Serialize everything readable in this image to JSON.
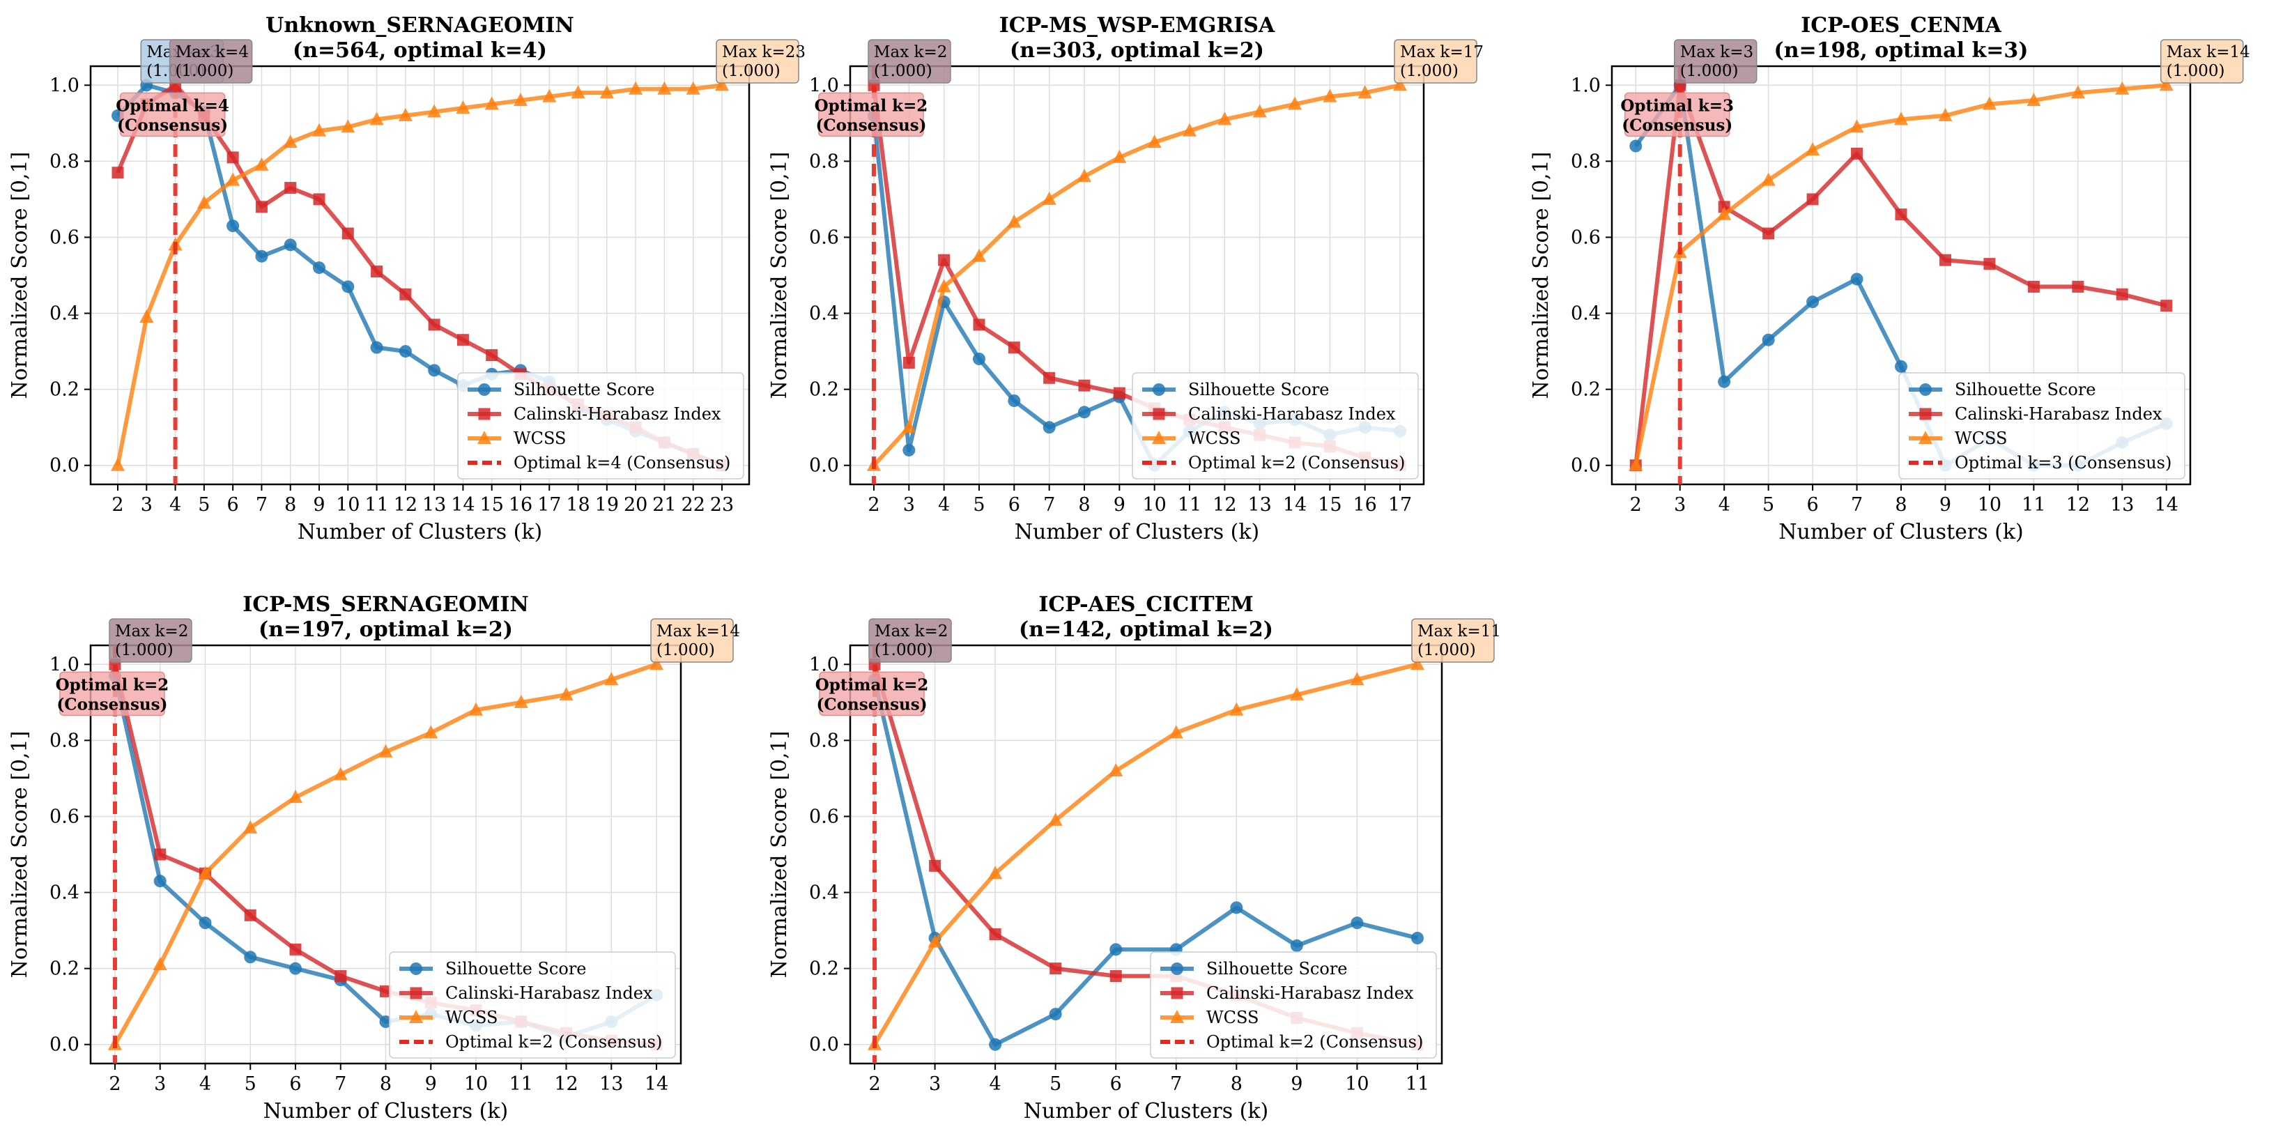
{
  "series_names": [
    "Silhouette Score",
    "Calinski-Harabasz Index",
    "WCSS"
  ],
  "colors": {
    "silhouette": "#1f77b4",
    "calinski": "#d62728",
    "wcss": "#ff7f0e",
    "optimal": "#e8281f"
  },
  "chart_data": [
    {
      "type": "line",
      "title": "Unknown_SERNAGEOMIN",
      "subtitle": "(n=564, optimal k=4)",
      "xlabel": "Number of Clusters (k)",
      "ylabel": "Normalized Score [0,1]",
      "ylim": [
        -0.05,
        1.05
      ],
      "yticks": [
        "0.0",
        "0.2",
        "0.4",
        "0.6",
        "0.8",
        "1.0"
      ],
      "grid": true,
      "legend_position": "lower-right",
      "x": [
        2,
        3,
        4,
        5,
        6,
        7,
        8,
        9,
        10,
        11,
        12,
        13,
        14,
        15,
        16,
        17,
        18,
        19,
        20,
        21,
        22,
        23
      ],
      "series": [
        {
          "name": "Silhouette Score",
          "values": [
            0.92,
            1.0,
            0.98,
            0.93,
            0.63,
            0.55,
            0.58,
            0.52,
            0.47,
            0.31,
            0.3,
            0.25,
            0.21,
            0.24,
            0.25,
            0.22,
            0.15,
            0.12,
            0.09,
            0.06,
            0.03,
            0.0
          ]
        },
        {
          "name": "Calinski-Harabasz Index",
          "values": [
            0.77,
            0.95,
            1.0,
            0.92,
            0.81,
            0.68,
            0.73,
            0.7,
            0.61,
            0.51,
            0.45,
            0.37,
            0.33,
            0.29,
            0.24,
            0.2,
            0.16,
            0.13,
            0.1,
            0.06,
            0.03,
            0.0
          ]
        },
        {
          "name": "WCSS",
          "values": [
            0.0,
            0.39,
            0.58,
            0.69,
            0.75,
            0.79,
            0.85,
            0.88,
            0.89,
            0.91,
            0.92,
            0.93,
            0.94,
            0.95,
            0.96,
            0.97,
            0.98,
            0.98,
            0.99,
            0.99,
            0.99,
            1.0
          ]
        }
      ],
      "optimal_k": 4,
      "optimal_label": "Optimal k=4 (Consensus)",
      "optimal_box": [
        "Optimal k=4",
        "(Consensus)"
      ],
      "max_boxes": [
        {
          "x": 3,
          "series": "Silhouette Score",
          "lines": [
            "Max k=3",
            "(1.000)"
          ]
        },
        {
          "x": 4,
          "series": "Calinski-Harabasz Index",
          "lines": [
            "Max k=4",
            "(1.000)"
          ]
        },
        {
          "x": 23,
          "series": "WCSS",
          "lines": [
            "Max k=23",
            "(1.000)"
          ]
        }
      ]
    },
    {
      "type": "line",
      "title": "ICP-MS_WSP-EMGRISA",
      "subtitle": "(n=303, optimal k=2)",
      "xlabel": "Number of Clusters (k)",
      "ylabel": "Normalized Score [0,1]",
      "ylim": [
        -0.05,
        1.05
      ],
      "yticks": [
        "0.0",
        "0.2",
        "0.4",
        "0.6",
        "0.8",
        "1.0"
      ],
      "grid": true,
      "legend_position": "lower-right",
      "x": [
        2,
        3,
        4,
        5,
        6,
        7,
        8,
        9,
        10,
        11,
        12,
        13,
        14,
        15,
        16,
        17
      ],
      "series": [
        {
          "name": "Silhouette Score",
          "values": [
            0.92,
            0.04,
            0.43,
            0.28,
            0.17,
            0.1,
            0.14,
            0.18,
            0.0,
            0.09,
            0.14,
            0.11,
            0.12,
            0.08,
            0.1,
            0.09
          ]
        },
        {
          "name": "Calinski-Harabasz Index",
          "values": [
            1.0,
            0.27,
            0.54,
            0.37,
            0.31,
            0.23,
            0.21,
            0.19,
            0.15,
            0.12,
            0.1,
            0.08,
            0.06,
            0.05,
            0.02,
            0.0
          ]
        },
        {
          "name": "WCSS",
          "values": [
            0.0,
            0.1,
            0.47,
            0.55,
            0.64,
            0.7,
            0.76,
            0.81,
            0.85,
            0.88,
            0.91,
            0.93,
            0.95,
            0.97,
            0.98,
            1.0
          ]
        }
      ],
      "optimal_k": 2,
      "optimal_label": "Optimal k=2 (Consensus)",
      "optimal_box": [
        "Optimal k=2",
        "(Consensus)"
      ],
      "max_boxes": [
        {
          "x": 2,
          "series": "Calinski-Harabasz Index",
          "lines": [
            "Max k=2",
            "(1.000)"
          ]
        },
        {
          "x": 17,
          "series": "WCSS",
          "lines": [
            "Max k=17",
            "(1.000)"
          ]
        }
      ]
    },
    {
      "type": "line",
      "title": "ICP-OES_CENMA",
      "subtitle": "(n=198, optimal k=3)",
      "xlabel": "Number of Clusters (k)",
      "ylabel": "Normalized Score [0,1]",
      "ylim": [
        -0.05,
        1.05
      ],
      "yticks": [
        "0.0",
        "0.2",
        "0.4",
        "0.6",
        "0.8",
        "1.0"
      ],
      "grid": true,
      "legend_position": "lower-right",
      "x": [
        2,
        3,
        4,
        5,
        6,
        7,
        8,
        9,
        10,
        11,
        12,
        13,
        14
      ],
      "series": [
        {
          "name": "Silhouette Score",
          "values": [
            0.84,
            1.0,
            0.22,
            0.33,
            0.43,
            0.49,
            0.26,
            0.0,
            0.07,
            0.0,
            0.0,
            0.06,
            0.11
          ]
        },
        {
          "name": "Calinski-Harabasz Index",
          "values": [
            0.0,
            1.0,
            0.68,
            0.61,
            0.7,
            0.82,
            0.66,
            0.54,
            0.53,
            0.47,
            0.47,
            0.45,
            0.42
          ]
        },
        {
          "name": "WCSS",
          "values": [
            0.0,
            0.56,
            0.66,
            0.75,
            0.83,
            0.89,
            0.91,
            0.92,
            0.95,
            0.96,
            0.98,
            0.99,
            1.0
          ]
        }
      ],
      "optimal_k": 3,
      "optimal_label": "Optimal k=3 (Consensus)",
      "optimal_box": [
        "Optimal k=3",
        "(Consensus)"
      ],
      "max_boxes": [
        {
          "x": 3,
          "series": "Calinski-Harabasz Index",
          "lines": [
            "Max k=3",
            "(1.000)"
          ]
        },
        {
          "x": 14,
          "series": "WCSS",
          "lines": [
            "Max k=14",
            "(1.000)"
          ]
        }
      ]
    },
    {
      "type": "line",
      "title": "ICP-MS_SERNAGEOMIN",
      "subtitle": "(n=197, optimal k=2)",
      "xlabel": "Number of Clusters (k)",
      "ylabel": "Normalized Score [0,1]",
      "ylim": [
        -0.05,
        1.05
      ],
      "yticks": [
        "0.0",
        "0.2",
        "0.4",
        "0.6",
        "0.8",
        "1.0"
      ],
      "grid": true,
      "legend_position": "lower-right",
      "x": [
        2,
        3,
        4,
        5,
        6,
        7,
        8,
        9,
        10,
        11,
        12,
        13,
        14
      ],
      "series": [
        {
          "name": "Silhouette Score",
          "values": [
            0.97,
            0.43,
            0.32,
            0.23,
            0.2,
            0.17,
            0.06,
            0.08,
            0.05,
            0.06,
            0.02,
            0.06,
            0.13
          ]
        },
        {
          "name": "Calinski-Harabasz Index",
          "values": [
            1.0,
            0.5,
            0.45,
            0.34,
            0.25,
            0.18,
            0.14,
            0.11,
            0.09,
            0.06,
            0.03,
            0.01,
            0.0
          ]
        },
        {
          "name": "WCSS",
          "values": [
            0.0,
            0.21,
            0.45,
            0.57,
            0.65,
            0.71,
            0.77,
            0.82,
            0.88,
            0.9,
            0.92,
            0.96,
            1.0
          ]
        }
      ],
      "optimal_k": 2,
      "optimal_label": "Optimal k=2 (Consensus)",
      "optimal_box": [
        "Optimal k=2",
        "(Consensus)"
      ],
      "max_boxes": [
        {
          "x": 2,
          "series": "Calinski-Harabasz Index",
          "lines": [
            "Max k=2",
            "(1.000)"
          ]
        },
        {
          "x": 14,
          "series": "WCSS",
          "lines": [
            "Max k=14",
            "(1.000)"
          ]
        }
      ]
    },
    {
      "type": "line",
      "title": "ICP-AES_CICITEM",
      "subtitle": "(n=142, optimal k=2)",
      "xlabel": "Number of Clusters (k)",
      "ylabel": "Normalized Score [0,1]",
      "ylim": [
        -0.05,
        1.05
      ],
      "yticks": [
        "0.0",
        "0.2",
        "0.4",
        "0.6",
        "0.8",
        "1.0"
      ],
      "grid": true,
      "legend_position": "lower-right",
      "x": [
        2,
        3,
        4,
        5,
        6,
        7,
        8,
        9,
        10,
        11
      ],
      "series": [
        {
          "name": "Silhouette Score",
          "values": [
            0.96,
            0.28,
            0.0,
            0.08,
            0.25,
            0.25,
            0.36,
            0.26,
            0.32,
            0.28
          ]
        },
        {
          "name": "Calinski-Harabasz Index",
          "values": [
            1.0,
            0.47,
            0.29,
            0.2,
            0.18,
            0.18,
            0.13,
            0.07,
            0.03,
            0.0
          ]
        },
        {
          "name": "WCSS",
          "values": [
            0.0,
            0.27,
            0.45,
            0.59,
            0.72,
            0.82,
            0.88,
            0.92,
            0.96,
            1.0
          ]
        }
      ],
      "optimal_k": 2,
      "optimal_label": "Optimal k=2 (Consensus)",
      "optimal_box": [
        "Optimal k=2",
        "(Consensus)"
      ],
      "max_boxes": [
        {
          "x": 2,
          "series": "Calinski-Harabasz Index",
          "lines": [
            "Max k=2",
            "(1.000)"
          ]
        },
        {
          "x": 11,
          "series": "WCSS",
          "lines": [
            "Max k=11",
            "(1.000)"
          ]
        }
      ]
    }
  ]
}
